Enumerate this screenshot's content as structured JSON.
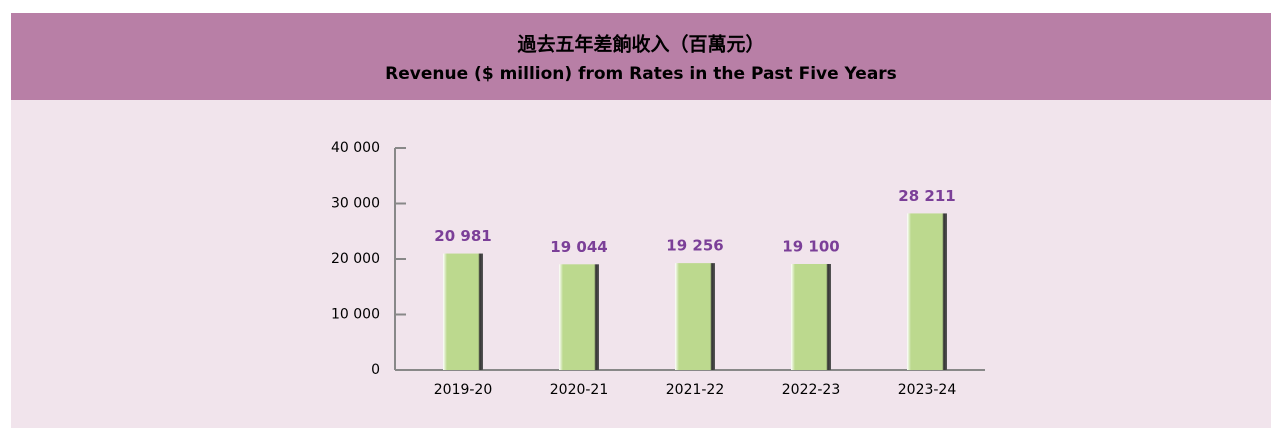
{
  "chart_data": {
    "type": "bar",
    "title": "過去五年差餉收入（百萬元）",
    "subtitle": "Revenue ($ million) from Rates in the Past Five Years",
    "categories": [
      "2019-20",
      "2020-21",
      "2021-22",
      "2022-23",
      "2023-24"
    ],
    "values": [
      20981,
      19044,
      19256,
      19100,
      28211
    ],
    "value_labels": [
      "20 981",
      "19 044",
      "19 256",
      "19 100",
      "28 211"
    ],
    "color": "#bcd98e",
    "ylim": [
      0,
      40000
    ],
    "yticks": [
      0,
      {
        "value": 10000,
        "label": "10 000"
      },
      {
        "value": 20000,
        "label": "20 000"
      },
      {
        "value": 30000,
        "label": "30 000"
      },
      {
        "value": 40000,
        "label": "40 000"
      }
    ],
    "grid": false
  }
}
